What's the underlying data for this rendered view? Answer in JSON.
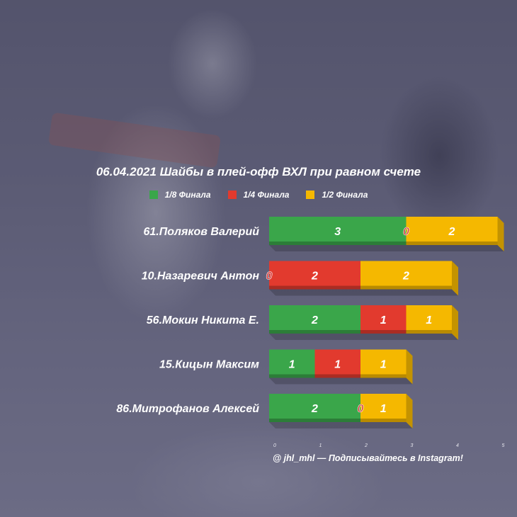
{
  "chart_data": {
    "type": "bar",
    "orientation": "horizontal",
    "stacked": true,
    "title": "06.04.2021 Шайбы в плей-офф ВХЛ при равном счете",
    "categories": [
      "61.Поляков Валерий",
      "10.Назаревич Антон",
      "56.Мокин Никита Е.",
      "15.Кицын Максим",
      "86.Митрофанов Алексей"
    ],
    "series": [
      {
        "name": "1/8 Финала",
        "color": "#3aa64a",
        "values": [
          3,
          0,
          2,
          1,
          2
        ]
      },
      {
        "name": "1/4 Финала",
        "color": "#e23a2e",
        "values": [
          0,
          2,
          1,
          1,
          0
        ]
      },
      {
        "name": "1/2 Финала",
        "color": "#f5b800",
        "values": [
          2,
          2,
          1,
          1,
          1
        ]
      }
    ],
    "xlim": [
      0,
      5
    ],
    "x_ticks": [
      "0",
      "1",
      "2",
      "3",
      "4",
      "5"
    ],
    "legend_position": "top-center",
    "grid": false
  },
  "footer": {
    "credit": "@ jhl_mhl — Подписывайтесь в Instagram!"
  }
}
